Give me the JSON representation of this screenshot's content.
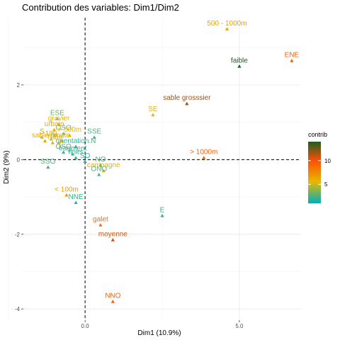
{
  "chart_data": {
    "type": "scatter",
    "title": "Contribution des variables: Dim1/Dim2",
    "xlabel": "Dim1 (10.9%)",
    "ylabel": "Dim2 (9%)",
    "xlim": [
      -2.0,
      7.0
    ],
    "ylim": [
      -4.3,
      3.8
    ],
    "x_ticks": [
      0.0,
      5.0
    ],
    "x_tick_labels": [
      "0.0",
      "5.0"
    ],
    "y_ticks": [
      -4,
      -2,
      0,
      2
    ],
    "y_tick_labels": [
      "-4",
      "-2",
      "0",
      "2"
    ],
    "reference_lines": {
      "x": 0,
      "y": 0,
      "style": "dashed"
    },
    "grid": true,
    "legend": {
      "title": "contrib",
      "placement": "right",
      "tick_values": [
        5,
        10
      ],
      "tick_labels": [
        "5",
        "10"
      ],
      "range": [
        1,
        14
      ],
      "colors": [
        "#00AFBB",
        "#E7B800",
        "#FC4E07",
        "#1B5E20"
      ]
    },
    "points": [
      {
        "label": "500 - 1000m",
        "x": 4.6,
        "y": 3.5,
        "contrib": 6.2
      },
      {
        "label": "ENE",
        "x": 6.7,
        "y": 2.65,
        "contrib": 9.0
      },
      {
        "label": "faible",
        "x": 5.0,
        "y": 2.5,
        "contrib": 14.0
      },
      {
        "label": "sable grosssier",
        "x": 3.3,
        "y": 1.5,
        "contrib": 11.5
      },
      {
        "label": "SE",
        "x": 2.2,
        "y": 1.2,
        "contrib": 5.2
      },
      {
        "label": "> 1000m",
        "x": 3.85,
        "y": 0.05,
        "contrib": 9.0
      },
      {
        "label": "ESE",
        "x": -0.9,
        "y": 1.1,
        "contrib": 3.0
      },
      {
        "label": "gravier",
        "x": -0.85,
        "y": 0.95,
        "contrib": 5.5
      },
      {
        "label": "urbain",
        "x": -1.0,
        "y": 0.8,
        "contrib": 6.0
      },
      {
        "label": "OSO",
        "x": -0.7,
        "y": 0.7,
        "contrib": 3.3
      },
      {
        "label": "> 500m",
        "x": -0.5,
        "y": 0.65,
        "contrib": 5.5
      },
      {
        "label": "SSE",
        "x": 0.3,
        "y": 0.6,
        "contrib": 2.4
      },
      {
        "label": "S",
        "x": -1.4,
        "y": 0.6,
        "contrib": 4.5
      },
      {
        "label": "100",
        "x": -1.1,
        "y": 0.55,
        "contrib": 5.0
      },
      {
        "label": "route",
        "x": -0.75,
        "y": 0.5,
        "contrib": 5.8
      },
      {
        "label": "NE",
        "x": -1.05,
        "y": 0.45,
        "contrib": 4.8
      },
      {
        "label": "rur",
        "x": -0.85,
        "y": 0.45,
        "contrib": 5.5
      },
      {
        "label": "sable fin",
        "x": -1.3,
        "y": 0.5,
        "contrib": 6.0
      },
      {
        "label": "orientation.N",
        "x": -0.3,
        "y": 0.35,
        "contrib": 2.0
      },
      {
        "label": "OSO",
        "x": -0.7,
        "y": 0.2,
        "contrib": 2.5
      },
      {
        "label": "fragment",
        "x": -0.4,
        "y": 0.15,
        "contrib": 2.0
      },
      {
        "label": "fines",
        "x": -0.3,
        "y": 0.05,
        "contrib": 2.0
      },
      {
        "label": "SO",
        "x": 0.0,
        "y": -0.05,
        "contrib": 2.0
      },
      {
        "label": "NO",
        "x": 0.5,
        "y": -0.15,
        "contrib": 2.4
      },
      {
        "label": "campagne",
        "x": 0.6,
        "y": -0.3,
        "contrib": 5.0
      },
      {
        "label": "ONO",
        "x": 0.45,
        "y": -0.4,
        "contrib": 2.4
      },
      {
        "label": "SSO",
        "x": -1.2,
        "y": -0.2,
        "contrib": 2.5
      },
      {
        "label": "< 100m",
        "x": -0.6,
        "y": -0.95,
        "contrib": 6.5
      },
      {
        "label": "NNE",
        "x": -0.3,
        "y": -1.15,
        "contrib": 2.0
      },
      {
        "label": "E",
        "x": 2.5,
        "y": -1.5,
        "contrib": 2.0
      },
      {
        "label": "galet",
        "x": 0.5,
        "y": -1.75,
        "contrib": 8.5
      },
      {
        "label": "moyenne",
        "x": 0.9,
        "y": -2.15,
        "contrib": 10.5
      },
      {
        "label": "NNO",
        "x": 0.9,
        "y": -3.8,
        "contrib": 9.0
      }
    ]
  }
}
